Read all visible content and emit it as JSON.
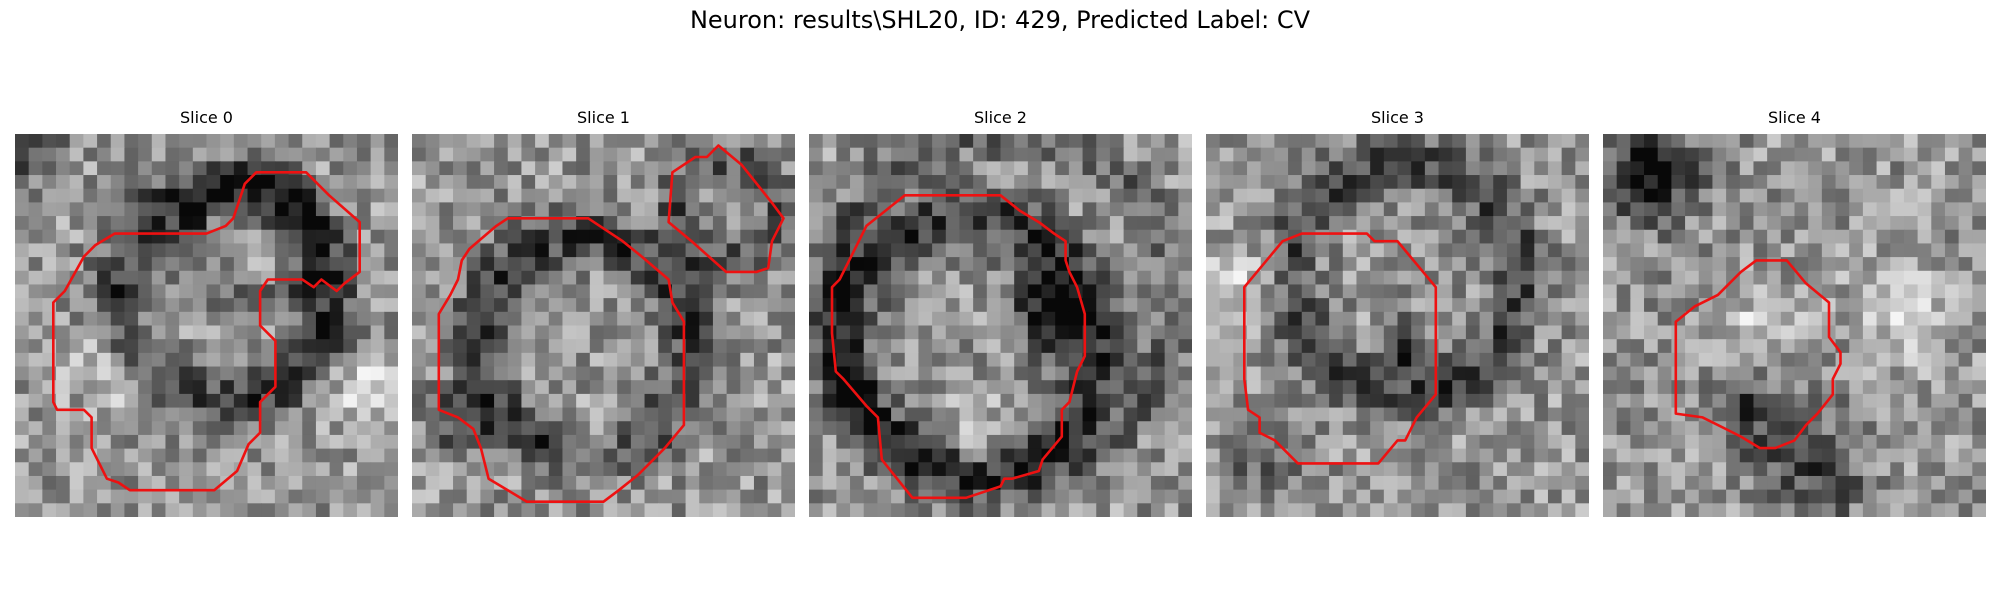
{
  "figure": {
    "title": "Neuron: results\\SHL20, ID: 429, Predicted Label: CV"
  },
  "colors": {
    "contour": "#ee1111",
    "background": "#ffffff"
  },
  "panels": [
    {
      "title": "Slice 0"
    },
    {
      "title": "Slice 1"
    },
    {
      "title": "Slice 2"
    },
    {
      "title": "Slice 3"
    },
    {
      "title": "Slice 4"
    }
  ]
}
